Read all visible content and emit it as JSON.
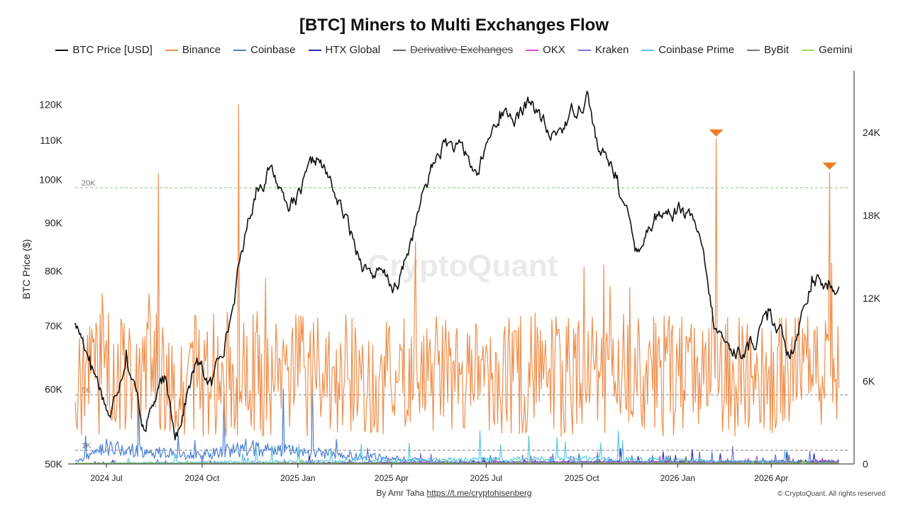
{
  "chart_data": {
    "type": "line",
    "title": "[BTC] Miners to Multi Exchanges Flow",
    "ylabel_left": "BTC Price ($)",
    "ylabel_right": "",
    "left_axis": {
      "scale": "log",
      "range": [
        50000,
        125000
      ],
      "ticks": [
        "50K",
        "60K",
        "70K",
        "80K",
        "90K",
        "100K",
        "110K",
        "120K"
      ],
      "tick_values": [
        50000,
        60000,
        70000,
        80000,
        90000,
        100000,
        110000,
        120000
      ]
    },
    "right_axis": {
      "scale": "linear",
      "range": [
        0,
        28000
      ],
      "ticks": [
        "0",
        "6K",
        "12K",
        "18K",
        "24K"
      ],
      "tick_values": [
        0,
        6000,
        12000,
        18000,
        24000
      ]
    },
    "x_axis": {
      "range": [
        "2024-06-01",
        "2026-06-10"
      ],
      "ticks": [
        "2024 Jul",
        "2024 Oct",
        "2025 Jan",
        "2025 Apr",
        "2025 Jul",
        "2025 Oct",
        "2026 Jan",
        "2026 Apr"
      ],
      "tick_dates": [
        "2024-07-01",
        "2024-10-01",
        "2025-01-01",
        "2025-04-01",
        "2025-07-01",
        "2025-10-01",
        "2026-01-01",
        "2026-04-01"
      ]
    },
    "reference_lines": [
      {
        "label": "20K",
        "value": 20000,
        "color": "#7bc67b"
      },
      {
        "label": "5K",
        "value": 5000,
        "color": "#888888"
      },
      {
        "label": "1K",
        "value": 1000,
        "color": "#888888"
      }
    ],
    "annotations": [
      {
        "type": "marker-triangle",
        "date": "2026-02-07",
        "value": 23500,
        "color": "#ee7b22"
      },
      {
        "type": "marker-triangle",
        "date": "2026-05-27",
        "value": 21100,
        "color": "#ee7b22"
      }
    ],
    "legend_position": "top",
    "grid": false,
    "watermark": "CryptoQuant",
    "series": [
      {
        "name": "BTC Price [USD]",
        "color": "#111111",
        "axis": "left",
        "hidden": false,
        "x": [
          "2024-06-01",
          "2024-06-15",
          "2024-07-05",
          "2024-07-20",
          "2024-08-05",
          "2024-08-25",
          "2024-09-06",
          "2024-09-25",
          "2024-10-10",
          "2024-10-29",
          "2024-11-12",
          "2024-11-22",
          "2024-12-05",
          "2024-12-17",
          "2024-12-30",
          "2025-01-20",
          "2025-02-03",
          "2025-02-27",
          "2025-03-10",
          "2025-04-07",
          "2025-04-22",
          "2025-05-10",
          "2025-05-22",
          "2025-06-10",
          "2025-06-22",
          "2025-07-14",
          "2025-08-01",
          "2025-08-14",
          "2025-09-01",
          "2025-09-18",
          "2025-10-06",
          "2025-10-17",
          "2025-11-04",
          "2025-11-21",
          "2025-12-10",
          "2026-01-05",
          "2026-01-20",
          "2026-02-05",
          "2026-02-20",
          "2026-03-10",
          "2026-03-28",
          "2026-04-20",
          "2026-05-10",
          "2026-05-25",
          "2026-06-05"
        ],
        "values": [
          70500,
          65000,
          56000,
          66000,
          55000,
          61000,
          54000,
          64000,
          60500,
          72000,
          88000,
          98000,
          103000,
          97000,
          94000,
          105000,
          98000,
          84000,
          80500,
          76500,
          88000,
          103000,
          109500,
          106000,
          101000,
          118000,
          116000,
          121000,
          110000,
          116000,
          124000,
          107000,
          101000,
          84000,
          92000,
          93000,
          88000,
          69500,
          66000,
          66000,
          71000,
          66000,
          79000,
          76500,
          77000
        ]
      },
      {
        "name": "Binance",
        "color": "#ee8f4d",
        "axis": "right",
        "hidden": false,
        "x": [
          "2024-06-01",
          "2024-08-20",
          "2024-11-05",
          "2025-02-20",
          "2025-06-25",
          "2025-09-20",
          "2025-12-15",
          "2026-02-07",
          "2026-04-20",
          "2026-05-27",
          "2026-06-05"
        ],
        "values": [
          4500,
          21000,
          26000,
          6000,
          5000,
          5500,
          7000,
          23500,
          8500,
          21100,
          5500
        ]
      },
      {
        "name": "Coinbase",
        "color": "#4a7fd4",
        "axis": "right",
        "hidden": false,
        "x": [
          "2024-06-01",
          "2024-07-01",
          "2024-09-27",
          "2024-11-12",
          "2025-06-01",
          "2026-06-05"
        ],
        "values": [
          200,
          1800,
          900,
          1800,
          150,
          200
        ]
      },
      {
        "name": "HTX Global",
        "color": "#2b2bb5",
        "axis": "right",
        "hidden": false,
        "x": [
          "2024-06-01",
          "2026-06-05"
        ],
        "values": [
          40,
          300
        ]
      },
      {
        "name": "Derivative Exchanges",
        "color": "#666666",
        "axis": "right",
        "hidden": true,
        "x": [],
        "values": []
      },
      {
        "name": "OKX",
        "color": "#d64bd6",
        "axis": "right",
        "hidden": false,
        "x": [
          "2024-06-01",
          "2026-06-05"
        ],
        "values": [
          40,
          200
        ]
      },
      {
        "name": "Kraken",
        "color": "#8a6fd6",
        "axis": "right",
        "hidden": false,
        "x": [
          "2024-06-01",
          "2026-06-05"
        ],
        "values": [
          40,
          300
        ]
      },
      {
        "name": "Coinbase Prime",
        "color": "#5cc8e0",
        "axis": "right",
        "hidden": false,
        "x": [
          "2024-06-01",
          "2025-10-05",
          "2026-06-05"
        ],
        "values": [
          60,
          600,
          100
        ]
      },
      {
        "name": "ByBit",
        "color": "#777777",
        "axis": "right",
        "hidden": false,
        "x": [
          "2024-06-01",
          "2026-06-05"
        ],
        "values": [
          30,
          150
        ]
      },
      {
        "name": "Gemini",
        "color": "#9bd45a",
        "axis": "right",
        "hidden": false,
        "x": [
          "2024-06-01",
          "2026-06-05"
        ],
        "values": [
          60,
          60
        ]
      }
    ]
  },
  "footer": {
    "author_prefix": "By Amr Taha",
    "author_link": "https://t.me/cryptohisenberg",
    "copyright": "© CryptoQuant. All rights reserved"
  }
}
